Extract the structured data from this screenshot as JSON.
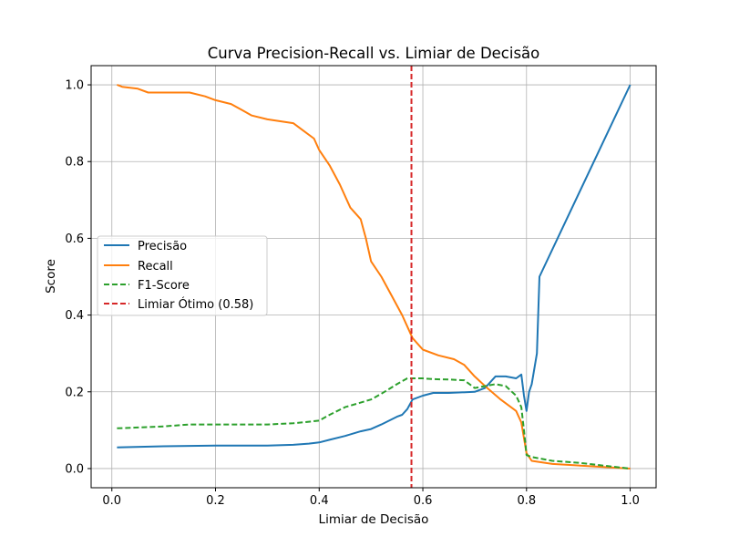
{
  "chart_data": {
    "type": "line",
    "title": "Curva Precision-Recall vs. Limiar de Decisão",
    "xlabel": "Limiar de Decisão",
    "ylabel": "Score",
    "xlim": [
      -0.04,
      1.05
    ],
    "ylim": [
      -0.05,
      1.05
    ],
    "xticks": [
      0.0,
      0.2,
      0.4,
      0.6,
      0.8,
      1.0
    ],
    "xtick_labels": [
      "0.0",
      "0.2",
      "0.4",
      "0.6",
      "0.8",
      "1.0"
    ],
    "yticks": [
      0.0,
      0.2,
      0.4,
      0.6,
      0.8,
      1.0
    ],
    "ytick_labels": [
      "0.0",
      "0.2",
      "0.4",
      "0.6",
      "0.8",
      "1.0"
    ],
    "grid": true,
    "legend_position": "center-left",
    "series": [
      {
        "name": "Precisão",
        "color": "#1f77b4",
        "style": "solid",
        "x": [
          0.01,
          0.1,
          0.2,
          0.3,
          0.35,
          0.38,
          0.4,
          0.42,
          0.45,
          0.48,
          0.5,
          0.52,
          0.55,
          0.56,
          0.57,
          0.58,
          0.6,
          0.62,
          0.65,
          0.7,
          0.72,
          0.74,
          0.76,
          0.78,
          0.79,
          0.795,
          0.8,
          0.805,
          0.81,
          0.82,
          0.825,
          1.0
        ],
        "y": [
          0.055,
          0.058,
          0.06,
          0.06,
          0.062,
          0.065,
          0.068,
          0.075,
          0.085,
          0.097,
          0.103,
          0.115,
          0.135,
          0.14,
          0.155,
          0.18,
          0.19,
          0.197,
          0.197,
          0.2,
          0.21,
          0.24,
          0.24,
          0.235,
          0.245,
          0.19,
          0.15,
          0.2,
          0.22,
          0.3,
          0.5,
          1.0
        ]
      },
      {
        "name": "Recall",
        "color": "#ff7f0e",
        "style": "solid",
        "x": [
          0.01,
          0.02,
          0.05,
          0.07,
          0.1,
          0.15,
          0.18,
          0.2,
          0.23,
          0.25,
          0.27,
          0.3,
          0.35,
          0.37,
          0.39,
          0.4,
          0.42,
          0.44,
          0.46,
          0.48,
          0.49,
          0.5,
          0.52,
          0.54,
          0.56,
          0.57,
          0.58,
          0.6,
          0.63,
          0.66,
          0.68,
          0.7,
          0.72,
          0.75,
          0.78,
          0.79,
          0.8,
          0.81,
          0.85,
          1.0
        ],
        "y": [
          1.0,
          0.995,
          0.99,
          0.98,
          0.98,
          0.98,
          0.97,
          0.96,
          0.95,
          0.935,
          0.92,
          0.91,
          0.9,
          0.88,
          0.86,
          0.83,
          0.79,
          0.74,
          0.68,
          0.65,
          0.6,
          0.54,
          0.5,
          0.45,
          0.4,
          0.37,
          0.34,
          0.31,
          0.295,
          0.285,
          0.27,
          0.24,
          0.215,
          0.18,
          0.15,
          0.12,
          0.04,
          0.02,
          0.012,
          0.0
        ]
      },
      {
        "name": "F1-Score",
        "color": "#2ca02c",
        "style": "dashed",
        "x": [
          0.01,
          0.05,
          0.1,
          0.15,
          0.2,
          0.3,
          0.35,
          0.38,
          0.4,
          0.42,
          0.45,
          0.48,
          0.5,
          0.52,
          0.55,
          0.57,
          0.58,
          0.6,
          0.62,
          0.65,
          0.68,
          0.7,
          0.72,
          0.74,
          0.76,
          0.78,
          0.79,
          0.795,
          0.8,
          0.81,
          0.85,
          0.9,
          1.0
        ],
        "y": [
          0.105,
          0.107,
          0.11,
          0.115,
          0.115,
          0.115,
          0.118,
          0.122,
          0.125,
          0.14,
          0.16,
          0.172,
          0.18,
          0.195,
          0.22,
          0.235,
          0.235,
          0.235,
          0.233,
          0.232,
          0.23,
          0.21,
          0.215,
          0.22,
          0.215,
          0.19,
          0.16,
          0.1,
          0.035,
          0.03,
          0.02,
          0.015,
          0.0
        ]
      }
    ],
    "vlines": [
      {
        "name": "Limiar Ótimo (0.58)",
        "x": 0.578,
        "color": "#d62728",
        "style": "dashed"
      }
    ],
    "legend_labels": [
      "Precisão",
      "Recall",
      "F1-Score",
      "Limiar Ótimo (0.58)"
    ]
  }
}
